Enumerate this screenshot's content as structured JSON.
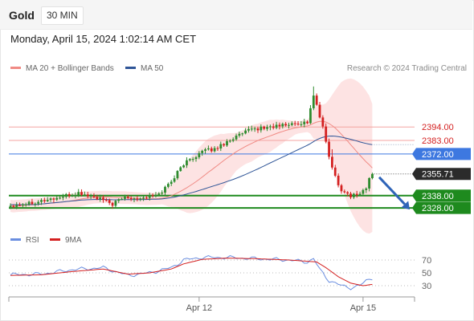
{
  "header": {
    "title": "Gold",
    "timeframe": "30 MIN",
    "datetime": "Monday, April 15, 2024 1:02:14 AM CET"
  },
  "legend": {
    "ma20": "MA 20 + Bollinger Bands",
    "ma50": "MA 50",
    "research": "Research © 2024 Trading Central",
    "rsi": "RSI",
    "rsi_ma": "9MA"
  },
  "colors": {
    "up": "#2e8b2e",
    "down": "#d42020",
    "bollinger_fill": "#fde3e3",
    "ma20": "#f08a84",
    "ma50": "#2f5597",
    "resistance": "#f4a3a0",
    "pivot": "#3d78e0",
    "support": "#1e8a1e",
    "arrow": "#2f64b8",
    "rsi": "#6a8ee0",
    "rsi_ma": "#d42020"
  },
  "chart_data": [
    {
      "type": "candlestick",
      "instrument": "Gold",
      "timeframe": "30 MIN",
      "ylim": [
        2313,
        2436
      ],
      "x_ticks": [
        {
          "index": 61,
          "label": "Apr 12"
        },
        {
          "index": 114,
          "label": "Apr 15"
        }
      ],
      "levels": [
        {
          "value": 2394.0,
          "label": "2394.00",
          "kind": "resistance"
        },
        {
          "value": 2383.0,
          "label": "2383.00",
          "kind": "resistance"
        },
        {
          "value": 2372.0,
          "label": "2372.00",
          "kind": "pivot"
        },
        {
          "value": 2355.71,
          "label": "2355.71",
          "kind": "last"
        },
        {
          "value": 2338.0,
          "label": "2338.00",
          "kind": "support"
        },
        {
          "value": 2328.0,
          "label": "2328.00",
          "kind": "support"
        }
      ],
      "forecast_arrow": {
        "from": 2355,
        "to": 2328
      },
      "anchors": [
        [
          0,
          2330
        ],
        [
          8,
          2333
        ],
        [
          15,
          2336
        ],
        [
          22,
          2340
        ],
        [
          28,
          2336
        ],
        [
          33,
          2331
        ],
        [
          37,
          2337
        ],
        [
          42,
          2336
        ],
        [
          48,
          2339
        ],
        [
          52,
          2350
        ],
        [
          56,
          2364
        ],
        [
          62,
          2374
        ],
        [
          66,
          2376
        ],
        [
          72,
          2385
        ],
        [
          78,
          2392
        ],
        [
          84,
          2394
        ],
        [
          90,
          2396
        ],
        [
          96,
          2398
        ],
        [
          98,
          2420
        ],
        [
          101,
          2393
        ],
        [
          104,
          2360
        ],
        [
          107,
          2342
        ],
        [
          110,
          2338
        ],
        [
          113,
          2340
        ],
        [
          115,
          2344
        ],
        [
          116,
          2352
        ],
        [
          117,
          2355.71
        ]
      ]
    },
    {
      "type": "line",
      "title": "RSI",
      "ylim": [
        15,
        85
      ],
      "y_ticks": [
        70,
        50,
        30
      ],
      "series": [
        {
          "name": "RSI",
          "anchors": [
            [
              0,
              47
            ],
            [
              10,
              48
            ],
            [
              20,
              55
            ],
            [
              30,
              58
            ],
            [
              38,
              46
            ],
            [
              45,
              50
            ],
            [
              52,
              58
            ],
            [
              56,
              70
            ],
            [
              62,
              74
            ],
            [
              70,
              74
            ],
            [
              80,
              72
            ],
            [
              90,
              70
            ],
            [
              96,
              67
            ],
            [
              98,
              72
            ],
            [
              100,
              55
            ],
            [
              103,
              38
            ],
            [
              107,
              30
            ],
            [
              110,
              27
            ],
            [
              113,
              30
            ],
            [
              115,
              38
            ],
            [
              117,
              42
            ]
          ]
        },
        {
          "name": "9MA",
          "anchors": [
            [
              0,
              46
            ],
            [
              10,
              47
            ],
            [
              20,
              52
            ],
            [
              30,
              56
            ],
            [
              38,
              48
            ],
            [
              45,
              50
            ],
            [
              52,
              56
            ],
            [
              56,
              64
            ],
            [
              62,
              71
            ],
            [
              70,
              73
            ],
            [
              80,
              72
            ],
            [
              90,
              70
            ],
            [
              96,
              68
            ],
            [
              99,
              67
            ],
            [
              102,
              58
            ],
            [
              106,
              44
            ],
            [
              110,
              34
            ],
            [
              114,
              30
            ],
            [
              117,
              32
            ]
          ]
        }
      ]
    }
  ]
}
